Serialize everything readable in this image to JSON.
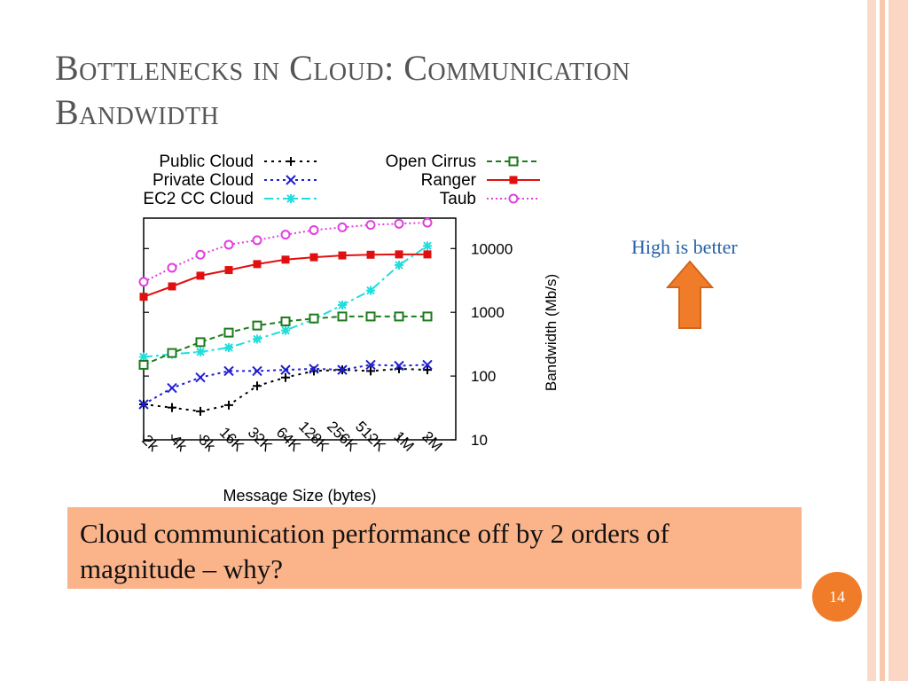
{
  "slide": {
    "title_line1": "Bottlenecks in Cloud: Communication",
    "title_line2": "Bandwidth",
    "note": "High is better",
    "callout": "Cloud communication performance off by 2 orders of magnitude – why?",
    "page_number": "14",
    "colors": {
      "title": "#555555",
      "callout_bg": "#fbb38a",
      "page_badge": "#f07c2a",
      "arrow": "#f07c2a",
      "note": "#2460a7"
    }
  },
  "chart_data": {
    "type": "line",
    "xlabel": "Message Size (bytes)",
    "ylabel": "Bandwidth (Mb/s)",
    "y_scale": "log",
    "ylim": [
      10,
      30000
    ],
    "y_ticks": [
      "10",
      "100",
      "1000",
      "10000"
    ],
    "categories": [
      "2k",
      "4k",
      "8k",
      "16K",
      "32K",
      "64K",
      "128K",
      "256K",
      "512K",
      "1M",
      "2M"
    ],
    "legend_placement": "top",
    "series": [
      {
        "name": "Public Cloud",
        "color": "#000000",
        "marker": "plus",
        "dash": "3,5",
        "values": [
          36,
          32,
          28,
          35,
          70,
          95,
          120,
          125,
          120,
          130,
          125
        ]
      },
      {
        "name": "Private Cloud",
        "color": "#1f1fd0",
        "marker": "cross",
        "dash": "3,4",
        "values": [
          36,
          65,
          95,
          120,
          120,
          125,
          130,
          125,
          150,
          145,
          150
        ]
      },
      {
        "name": "EC2 CC Cloud",
        "color": "#22dddd",
        "marker": "star",
        "dash": "10,4,3,4",
        "values": [
          200,
          220,
          240,
          280,
          380,
          520,
          780,
          1300,
          2200,
          5500,
          11000
        ]
      },
      {
        "name": "Open Cirrus",
        "color": "#1e7a1e",
        "marker": "square",
        "dash": "6,4",
        "values": [
          150,
          230,
          340,
          480,
          620,
          720,
          800,
          860,
          860,
          860,
          860
        ]
      },
      {
        "name": "Ranger",
        "color": "#e01010",
        "marker": "filledsquare",
        "dash": "",
        "values": [
          1750,
          2550,
          3750,
          4600,
          5700,
          6700,
          7300,
          7800,
          8000,
          8100,
          8100
        ]
      },
      {
        "name": "Taub",
        "color": "#e040e0",
        "marker": "circle",
        "dash": "2,3",
        "values": [
          3000,
          5000,
          8000,
          11500,
          13500,
          16500,
          19500,
          21500,
          23500,
          24500,
          25500
        ]
      }
    ]
  }
}
